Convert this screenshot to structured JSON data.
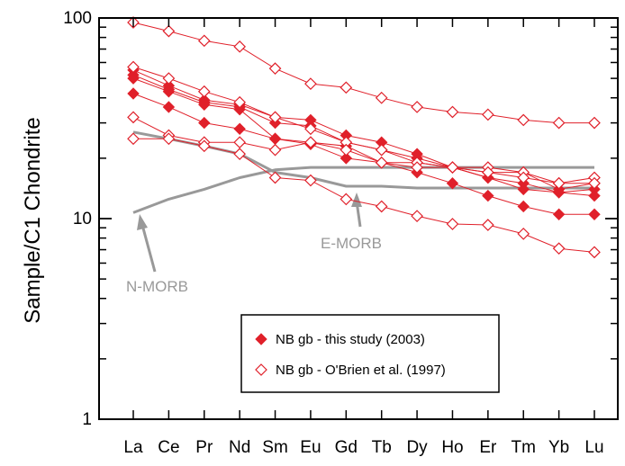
{
  "chart_data": {
    "type": "line",
    "title": "",
    "xlabel": "",
    "ylabel": "Sample/C1 Chondrite",
    "yscale": "log",
    "ylim": [
      1,
      100
    ],
    "yticks": [
      "1",
      "10",
      "100"
    ],
    "grid": false,
    "legend_position": "bottom-right",
    "categories": [
      "La",
      "Ce",
      "Pr",
      "Nd",
      "Sm",
      "Eu",
      "Gd",
      "Tb",
      "Dy",
      "Ho",
      "Er",
      "Tm",
      "Yb",
      "Lu"
    ],
    "colors": {
      "samples": "#e0202a",
      "reference": "#999999"
    },
    "legend": [
      {
        "label": "NB gb - this study (2003)",
        "marker": "filled-diamond"
      },
      {
        "label": "NB gb - O'Brien et al. (1997)",
        "marker": "open-diamond"
      }
    ],
    "series": [
      {
        "group": "this study",
        "filled": true,
        "values": [
          55,
          46,
          39,
          37,
          32,
          31,
          26,
          24,
          21,
          18,
          17,
          17,
          14,
          15
        ]
      },
      {
        "group": "this study",
        "filled": true,
        "values": [
          52,
          44,
          38,
          36,
          30,
          29,
          24,
          22,
          20,
          18,
          16,
          15,
          13.5,
          14
        ]
      },
      {
        "group": "this study",
        "filled": true,
        "values": [
          50,
          43,
          37,
          35,
          25,
          24,
          23,
          19,
          19,
          18,
          16,
          14,
          13.5,
          13
        ]
      },
      {
        "group": "this study",
        "filled": true,
        "values": [
          42,
          36,
          30,
          28,
          25,
          23.5,
          20,
          19,
          17,
          15,
          13,
          11.5,
          10.5,
          10.5
        ]
      },
      {
        "group": "O'Brien et al.",
        "filled": false,
        "values": [
          95,
          86,
          77,
          72,
          56,
          47,
          45,
          40,
          36,
          34,
          33,
          31,
          30,
          30
        ]
      },
      {
        "group": "O'Brien et al.",
        "filled": false,
        "values": [
          57,
          50,
          43,
          38,
          32,
          28,
          24,
          22,
          19,
          18,
          18,
          17,
          15,
          16
        ]
      },
      {
        "group": "O'Brien et al.",
        "filled": false,
        "values": [
          32,
          26,
          24,
          24,
          22,
          24,
          22,
          19,
          18,
          18,
          17,
          16,
          15,
          15
        ]
      },
      {
        "group": "O'Brien et al.",
        "filled": false,
        "values": [
          25,
          25,
          23,
          21,
          16,
          15.5,
          12.5,
          11.5,
          10.3,
          9.4,
          9.3,
          8.4,
          7.1,
          6.8
        ]
      }
    ],
    "reference_curves": [
      {
        "name": "E-MORB",
        "values": [
          27,
          25,
          23,
          21,
          17,
          16,
          14.5,
          14.5,
          14.2,
          14.2,
          14.2,
          14.2,
          14.2,
          14.2
        ]
      },
      {
        "name": "N-MORB",
        "values": [
          10.7,
          12.5,
          14,
          16,
          17.5,
          18,
          18,
          18,
          18,
          18,
          18,
          18,
          18,
          18
        ]
      }
    ]
  }
}
